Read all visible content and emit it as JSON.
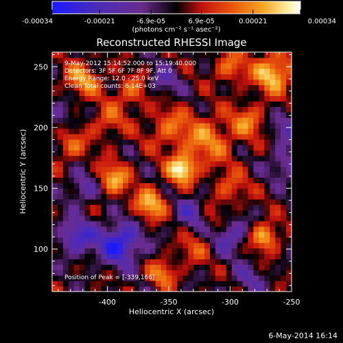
{
  "chart_data": {
    "type": "heatmap",
    "title": "Reconstructed RHESSI Image",
    "xlabel": "Heliocentric X (arcsec)",
    "ylabel": "Heliocentric Y (arcsec)",
    "xlim": [
      -445,
      -250
    ],
    "ylim": [
      65,
      262
    ],
    "x_ticks": [
      -400,
      -350,
      -300,
      -250
    ],
    "y_ticks": [
      100,
      150,
      200,
      250
    ],
    "x_tick_labels": [
      "-400",
      "-350",
      "-300",
      "-250"
    ],
    "y_tick_labels": [
      "100",
      "150",
      "200",
      "250"
    ],
    "colorbar": {
      "label": "(photons cm⁻² s⁻¹ asec⁻²)",
      "range": [
        -0.00034,
        0.00034
      ],
      "tick_labels": [
        "-0.00034",
        "-0.00021",
        "-6.9e-05",
        "6.9e-05",
        "0.00021",
        "0.00034"
      ],
      "colors": [
        "#1a1aff",
        "#4b2bb8",
        "#6a2c8e",
        "#000000",
        "#c2110e",
        "#e8530a",
        "#f5a623",
        "#fff0a0",
        "#ffffff"
      ]
    },
    "annotations": [
      "9-May-2012 15:14:52.000 to 15:19:40.000",
      "Detectors: 3F 5F 6F 7F 8F 9F, Att 0",
      "Energy Range: 12.0 - 25.0 keV",
      "Clean    Total counts: 6.14E+03",
      "Position of Peak = [-339,166]"
    ],
    "peak": {
      "x": -339,
      "y": 166
    },
    "hotspots": [
      {
        "x": -339,
        "y": 166,
        "amp": 1.0,
        "sig": 8
      },
      {
        "x": -365,
        "y": 137,
        "amp": 0.75,
        "sig": 9
      },
      {
        "x": -318,
        "y": 190,
        "amp": 0.55,
        "sig": 14
      },
      {
        "x": -350,
        "y": 200,
        "amp": 0.45,
        "sig": 12
      },
      {
        "x": -395,
        "y": 158,
        "amp": 0.7,
        "sig": 9
      },
      {
        "x": -272,
        "y": 110,
        "amp": 0.75,
        "sig": 8
      },
      {
        "x": -420,
        "y": 240,
        "amp": 0.6,
        "sig": 10
      },
      {
        "x": -265,
        "y": 245,
        "amp": 0.85,
        "sig": 11
      },
      {
        "x": -300,
        "y": 250,
        "amp": 0.5,
        "sig": 9
      },
      {
        "x": -380,
        "y": 230,
        "amp": 0.45,
        "sig": 10
      },
      {
        "x": -355,
        "y": 80,
        "amp": 0.55,
        "sig": 8
      },
      {
        "x": -300,
        "y": 150,
        "amp": 0.4,
        "sig": 10
      },
      {
        "x": -430,
        "y": 185,
        "amp": 0.45,
        "sig": 9
      },
      {
        "x": -330,
        "y": 100,
        "amp": 0.35,
        "sig": 9
      },
      {
        "x": -400,
        "y": 205,
        "amp": 0.4,
        "sig": 10
      },
      {
        "x": -285,
        "y": 205,
        "amp": 0.5,
        "sig": 10
      },
      {
        "x": -315,
        "y": 125,
        "amp": 0.3,
        "sig": 9
      }
    ],
    "coldspots": [
      {
        "x": -390,
        "y": 105,
        "amp": 0.9,
        "sig": 12
      },
      {
        "x": -425,
        "y": 110,
        "amp": 0.7,
        "sig": 10
      },
      {
        "x": -300,
        "y": 112,
        "amp": 0.55,
        "sig": 10
      },
      {
        "x": -330,
        "y": 130,
        "amp": 0.5,
        "sig": 10
      },
      {
        "x": -420,
        "y": 150,
        "amp": 0.45,
        "sig": 9
      },
      {
        "x": -255,
        "y": 170,
        "amp": 0.45,
        "sig": 9
      },
      {
        "x": -255,
        "y": 200,
        "amp": 0.4,
        "sig": 9
      },
      {
        "x": -440,
        "y": 210,
        "amp": 0.35,
        "sig": 8
      },
      {
        "x": -355,
        "y": 238,
        "amp": 0.4,
        "sig": 9
      },
      {
        "x": -285,
        "y": 75,
        "amp": 0.35,
        "sig": 9
      }
    ]
  },
  "footer": {
    "date": "6-May-2014 16:14"
  }
}
